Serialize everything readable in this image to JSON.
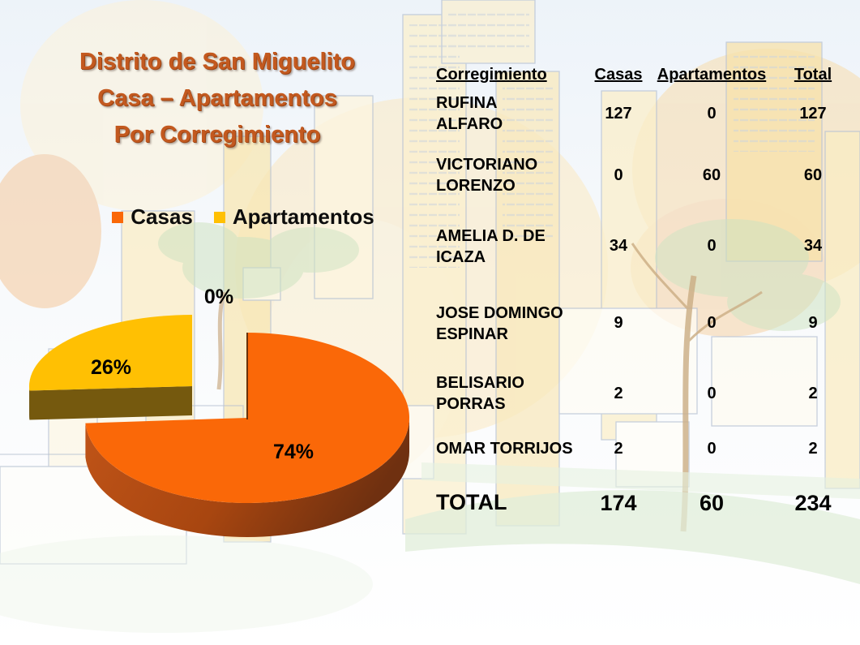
{
  "title": {
    "lines": [
      "Distrito de San Miguelito",
      "Casa – Apartamentos",
      "Por Corregimiento"
    ]
  },
  "legend": [
    {
      "label": "Casas",
      "color": "#FA6808"
    },
    {
      "label": "Apartamentos",
      "color": "#FFC003"
    }
  ],
  "chart_data": {
    "type": "pie",
    "style": "3d-exploded",
    "title": "Distrito de San Miguelito Casa – Apartamentos Por Corregimiento",
    "legend_position": "top",
    "slices": [
      {
        "name": "Casas",
        "value": 74,
        "label": "74%",
        "color": "#FA6808",
        "side_color": "#B04A12",
        "side_dark": "#6F3010"
      },
      {
        "name": "Apartamentos",
        "value": 26,
        "label": "26%",
        "color": "#FFC003",
        "side_color": "#75590E",
        "side_dark": "#5E470B"
      },
      {
        "name": "",
        "value": 0,
        "label": "0%",
        "color": "",
        "side_color": "",
        "side_dark": ""
      }
    ]
  },
  "table": {
    "headers": [
      "Corregimiento",
      "Casas",
      "Apartamentos",
      "Total"
    ],
    "rows": [
      {
        "name_lines": [
          "RUFINA",
          "ALFARO"
        ],
        "casas": "127",
        "apartamentos": "0",
        "total": "127"
      },
      {
        "name_lines": [
          "VICTORIANO",
          "LORENZO"
        ],
        "casas": "0",
        "apartamentos": "60",
        "total": "60"
      },
      {
        "name_lines": [
          "AMELIA D. DE",
          "ICAZA"
        ],
        "casas": "34",
        "apartamentos": "0",
        "total": "34"
      },
      {
        "name_lines": [
          "JOSE DOMINGO",
          "ESPINAR"
        ],
        "casas": "9",
        "apartamentos": "0",
        "total": "9"
      },
      {
        "name_lines": [
          "BELISARIO",
          "PORRAS"
        ],
        "casas": "2",
        "apartamentos": "0",
        "total": "2"
      },
      {
        "name_lines": [
          "OMAR TORRIJOS"
        ],
        "casas": "2",
        "apartamentos": "0",
        "total": "2"
      }
    ],
    "total_row": {
      "name_lines": [
        "TOTAL"
      ],
      "casas": "174",
      "apartamentos": "60",
      "total": "234"
    }
  }
}
